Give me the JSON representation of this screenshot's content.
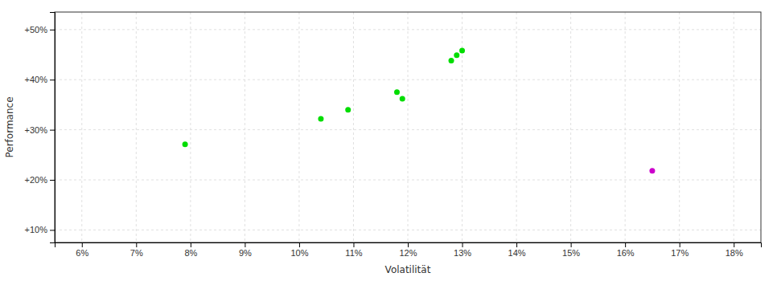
{
  "chart_data": {
    "type": "scatter",
    "xlabel": "Volatilität",
    "ylabel": "Performance",
    "xlim": [
      0.055,
      0.185
    ],
    "ylim": [
      0.075,
      0.535
    ],
    "xticks": [
      {
        "value": 0.06,
        "label": "6%"
      },
      {
        "value": 0.07,
        "label": "7%"
      },
      {
        "value": 0.08,
        "label": "8%"
      },
      {
        "value": 0.09,
        "label": "9%"
      },
      {
        "value": 0.1,
        "label": "10%"
      },
      {
        "value": 0.11,
        "label": "11%"
      },
      {
        "value": 0.12,
        "label": "12%"
      },
      {
        "value": 0.13,
        "label": "13%"
      },
      {
        "value": 0.14,
        "label": "14%"
      },
      {
        "value": 0.15,
        "label": "15%"
      },
      {
        "value": 0.16,
        "label": "16%"
      },
      {
        "value": 0.17,
        "label": "17%"
      },
      {
        "value": 0.18,
        "label": "18%"
      }
    ],
    "yticks": [
      {
        "value": 0.1,
        "label": "+10%"
      },
      {
        "value": 0.2,
        "label": "+20%"
      },
      {
        "value": 0.3,
        "label": "+30%"
      },
      {
        "value": 0.4,
        "label": "+40%"
      },
      {
        "value": 0.5,
        "label": "+50%"
      }
    ],
    "grid": true,
    "series": [
      {
        "color": "#00dd00",
        "x": [
          0.079,
          0.104,
          0.109,
          0.119,
          0.118,
          0.128,
          0.129,
          0.13
        ],
        "values": [
          0.271,
          0.322,
          0.34,
          0.362,
          0.375,
          0.438,
          0.449,
          0.458
        ]
      },
      {
        "color": "#cc00cc",
        "x": [
          0.165
        ],
        "values": [
          0.218
        ]
      }
    ]
  }
}
